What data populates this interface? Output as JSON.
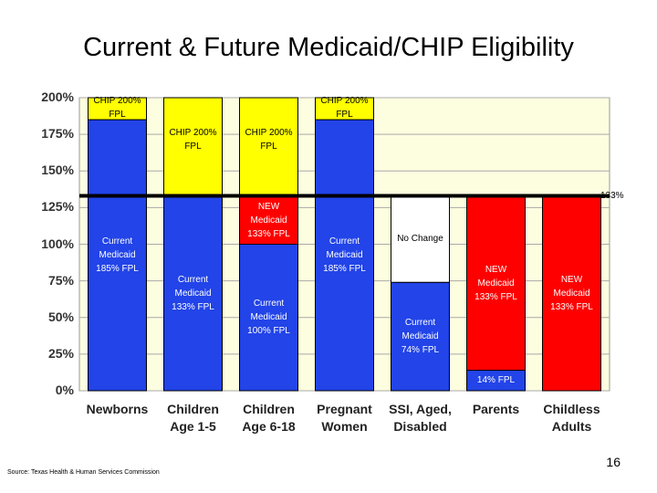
{
  "chart_data": {
    "type": "stacked-bar",
    "title": "Current & Future Medicaid/CHIP Eligibility",
    "categories": [
      "Newborns",
      "Children Age 1-5",
      "Children Age 6-18",
      "Pregnant Women",
      "SSI, Aged, Disabled",
      "Parents",
      "Childless Adults"
    ],
    "series": [
      {
        "color": "#2244e8",
        "values": [
          185,
          133,
          100,
          185,
          74,
          14,
          null
        ],
        "labels": [
          "Current Medicaid 185% FPL",
          "Current Medicaid 133% FPL",
          "Current Medicaid 100% FPL",
          "Current Medicaid 185% FPL",
          "Current Medicaid 74% FPL",
          "14% FPL",
          null
        ]
      },
      {
        "color": "#ffffff",
        "values": [
          null,
          null,
          null,
          null,
          59,
          null,
          null
        ],
        "labels": [
          null,
          null,
          null,
          null,
          "No Change",
          null,
          null
        ]
      },
      {
        "color": "#ff0000",
        "values": [
          null,
          null,
          33,
          null,
          null,
          119,
          133
        ],
        "labels": [
          null,
          null,
          "NEW Medicaid 133% FPL",
          null,
          null,
          "NEW Medicaid 133% FPL",
          "NEW Medicaid 133% FPL"
        ]
      },
      {
        "color": "#ffff00",
        "values": [
          15,
          67,
          67,
          15,
          null,
          null,
          null
        ],
        "labels": [
          "CHIP 200% FPL",
          "CHIP 200% FPL",
          "CHIP 200% FPL",
          "CHIP 200% FPL",
          null,
          null,
          null
        ]
      }
    ],
    "reference_line": {
      "value": 133,
      "label": "133%"
    },
    "ylim": [
      0,
      200
    ],
    "yticks": [
      {
        "value": 0,
        "label": "0%"
      },
      {
        "value": 25,
        "label": "25%"
      },
      {
        "value": 50,
        "label": "50%"
      },
      {
        "value": 75,
        "label": "75%"
      },
      {
        "value": 100,
        "label": "100%"
      },
      {
        "value": 125,
        "label": "125%"
      },
      {
        "value": 150,
        "label": "150%"
      },
      {
        "value": 175,
        "label": "175%"
      },
      {
        "value": 200,
        "label": "200%"
      }
    ],
    "grid": true
  },
  "source": "Source: Texas Health & Human Services Commission",
  "page_number": "16"
}
